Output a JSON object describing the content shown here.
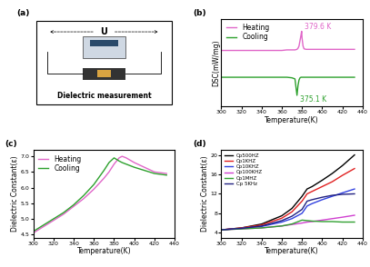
{
  "chart_data": [
    {
      "type": "diagram",
      "panel_label": "(a)",
      "voltage": "U",
      "caption": "Dielectric measurement"
    },
    {
      "type": "line",
      "panel_label": "(b)",
      "x_label": "Temperature(K)",
      "y_label": "DSC(mW/mg)",
      "x": [
        300,
        310,
        320,
        330,
        340,
        350,
        360,
        365,
        370,
        373,
        375,
        376,
        377,
        378,
        379,
        379.6,
        380,
        381,
        382,
        384,
        388,
        395,
        405,
        415,
        425,
        432
      ],
      "series": [
        {
          "name": "Heating",
          "color": "#e066c8",
          "marker": "none",
          "line_style": "solid",
          "values": [
            0.22,
            0.22,
            0.22,
            0.22,
            0.22,
            0.22,
            0.22,
            0.23,
            0.23,
            0.23,
            0.24,
            0.26,
            0.3,
            0.4,
            0.5,
            0.57,
            0.45,
            0.3,
            0.25,
            0.24,
            0.24,
            0.24,
            0.24,
            0.24,
            0.24,
            0.24
          ]
        },
        {
          "name": "Cooling",
          "color": "#2ca02c",
          "marker": "none",
          "line_style": "solid",
          "values": [
            -0.27,
            -0.27,
            -0.27,
            -0.27,
            -0.27,
            -0.27,
            -0.27,
            -0.27,
            -0.28,
            -0.3,
            -0.6,
            -0.42,
            -0.32,
            -0.28,
            -0.27,
            -0.27,
            -0.27,
            -0.27,
            -0.27,
            -0.27,
            -0.27,
            -0.27,
            -0.27,
            -0.27,
            -0.27,
            -0.27
          ]
        }
      ],
      "annotations": [
        "379.6 K",
        "375.1 K"
      ],
      "xlim": [
        300,
        440
      ],
      "xticks": [
        300,
        320,
        340,
        360,
        380,
        400,
        420,
        440
      ],
      "ylim": [
        -0.8,
        0.8
      ],
      "tick_labels": "x",
      "legend": "upper left"
    },
    {
      "type": "line",
      "panel_label": "(c)",
      "x_label": "Temperature(K)",
      "y_label": "Dielectric Constant(ε)",
      "x": [
        300,
        310,
        320,
        330,
        340,
        350,
        360,
        370,
        375,
        380,
        385,
        388,
        392,
        400,
        410,
        420,
        432
      ],
      "series": [
        {
          "name": "Heating",
          "color": "#e066c8",
          "marker": "none",
          "line_style": "solid",
          "values": [
            4.55,
            4.75,
            4.95,
            5.15,
            5.4,
            5.65,
            5.95,
            6.3,
            6.5,
            6.75,
            6.95,
            7.0,
            6.95,
            6.8,
            6.65,
            6.5,
            6.45
          ]
        },
        {
          "name": "Cooling",
          "color": "#2ca02c",
          "marker": "none",
          "line_style": "solid",
          "values": [
            4.6,
            4.8,
            5.0,
            5.2,
            5.45,
            5.75,
            6.1,
            6.55,
            6.8,
            6.95,
            6.85,
            6.8,
            6.75,
            6.65,
            6.55,
            6.45,
            6.4
          ]
        }
      ],
      "xlim": [
        300,
        440
      ],
      "xticks": [
        300,
        320,
        340,
        360,
        380,
        400,
        420,
        440
      ],
      "ylim": [
        4.4,
        7.2
      ],
      "yticks": [
        4.5,
        5.0,
        5.5,
        6.0,
        6.5,
        7.0
      ],
      "legend": "upper left"
    },
    {
      "type": "line",
      "panel_label": "(d)",
      "x_label": "Temperature(K)",
      "y_label": "Dielectric Constant(ε)",
      "x": [
        300,
        320,
        340,
        360,
        370,
        380,
        385,
        390,
        400,
        410,
        420,
        432
      ],
      "series": [
        {
          "name": "Cp500HZ",
          "color": "#000000",
          "marker": "none",
          "line_style": "solid",
          "values": [
            4.6,
            5.0,
            5.8,
            7.5,
            9.0,
            11.5,
            13.0,
            13.5,
            14.8,
            16.2,
            17.8,
            20.0
          ]
        },
        {
          "name": "Cp1KHZ",
          "color": "#e02020",
          "marker": "none",
          "line_style": "solid",
          "values": [
            4.6,
            5.0,
            5.6,
            7.0,
            8.3,
            10.5,
            12.0,
            12.5,
            13.5,
            14.5,
            15.8,
            17.2
          ]
        },
        {
          "name": "Cp10KHZ",
          "color": "#3040e0",
          "marker": "none",
          "line_style": "solid",
          "values": [
            4.6,
            4.9,
            5.3,
            6.2,
            6.9,
            8.0,
            9.5,
            10.0,
            10.8,
            11.5,
            12.2,
            13.0
          ]
        },
        {
          "name": "Cp100KHZ",
          "color": "#d040d0",
          "marker": "none",
          "line_style": "solid",
          "values": [
            4.6,
            4.8,
            5.0,
            5.4,
            5.7,
            6.0,
            6.2,
            6.3,
            6.6,
            6.9,
            7.2,
            7.6
          ]
        },
        {
          "name": "Cp1MHZ",
          "color": "#30a030",
          "marker": "none",
          "line_style": "solid",
          "values": [
            4.6,
            4.8,
            5.0,
            5.4,
            5.8,
            6.6,
            6.5,
            6.4,
            6.3,
            6.3,
            6.2,
            6.2
          ]
        },
        {
          "name": "Cp 5KHz",
          "color": "#202080",
          "marker": "none",
          "line_style": "solid",
          "values": [
            4.6,
            4.9,
            5.4,
            6.5,
            7.4,
            8.8,
            10.5,
            10.8,
            11.3,
            11.7,
            11.9,
            12.0
          ]
        }
      ],
      "xlim": [
        300,
        440
      ],
      "xticks": [
        300,
        320,
        340,
        360,
        380,
        400,
        420,
        440
      ],
      "ylim": [
        3,
        21
      ],
      "yticks": [
        4,
        8,
        12,
        16,
        20
      ],
      "legend": "upper left"
    }
  ]
}
